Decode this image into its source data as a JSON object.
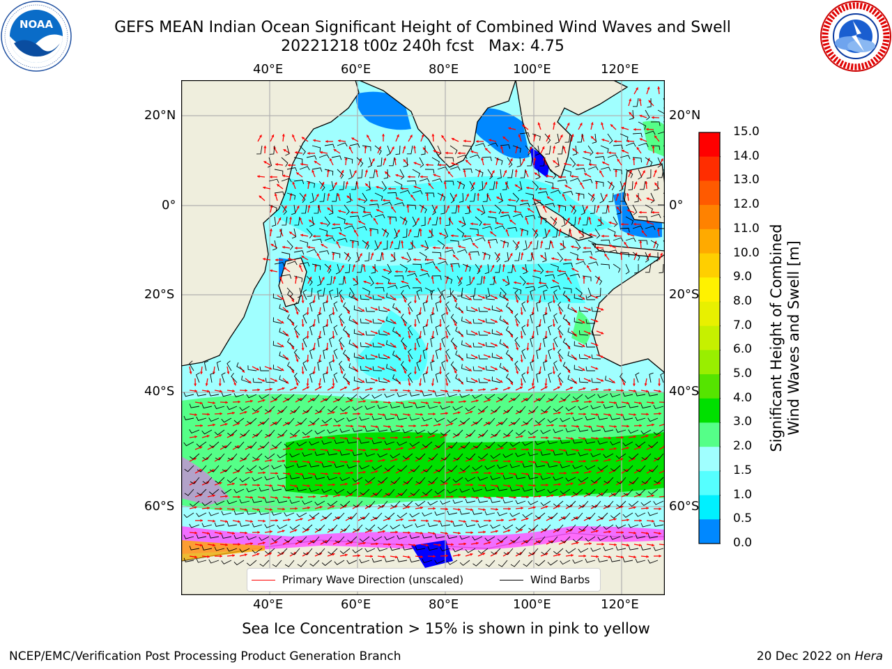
{
  "title": {
    "line1": "GEFS MEAN Indian Ocean Significant Height of Combined Wind Waves and Swell",
    "line2": "20221218 t00z 240h fcst   Max: 4.75"
  },
  "logos": {
    "noaa": {
      "text": "NOAA",
      "ring_text": "NATIONAL OCEANIC AND ATMOSPHERIC ADMINISTRATION · U.S. DEPARTMENT OF COMMERCE"
    },
    "nws": {
      "ring_text": "NATIONAL WEATHER SERVICE"
    }
  },
  "map": {
    "lon_ticks": [
      "40°E",
      "60°E",
      "80°E",
      "100°E",
      "120°E"
    ],
    "lat_ticks": [
      "20°N",
      "0°",
      "20°S",
      "40°S",
      "60°S"
    ],
    "colors": {
      "land": "#efeedd",
      "coast": "#000000",
      "grid": "#b0b0b0",
      "wave_arrow": "#ff0000",
      "wind_barb": "#000000",
      "ice_pink": "#ff55ff"
    }
  },
  "legend": {
    "wave": "Primary Wave Direction (unscaled)",
    "wind": "Wind Barbs"
  },
  "colorbar": {
    "label_line1": "Significant Height of Combined",
    "label_line2": "Wind Waves and Swell [m]",
    "ticks": [
      "15.0",
      "14.0",
      "13.0",
      "12.0",
      "11.0",
      "10.0",
      "9.0",
      "8.0",
      "7.0",
      "6.0",
      "5.0",
      "4.0",
      "3.0",
      "2.0",
      "1.5",
      "1.0",
      "0.5",
      "0.0"
    ],
    "colors": [
      "#ff0000",
      "#ff2d00",
      "#ff5a00",
      "#ff8200",
      "#ffaa00",
      "#ffcf00",
      "#fff200",
      "#e8f000",
      "#c6f000",
      "#99ee00",
      "#55e400",
      "#00e000",
      "#55ff88",
      "#a0ffff",
      "#55ffff",
      "#00f0ff",
      "#0088ff",
      "#0000ff"
    ]
  },
  "subtitle": "Sea Ice Concentration > 15% is shown in pink to yellow",
  "footer": {
    "left": "NCEP/EMC/Verification Post Processing Product Generation Branch",
    "right_prefix": "20 Dec 2022 on ",
    "right_host": "Hera"
  }
}
